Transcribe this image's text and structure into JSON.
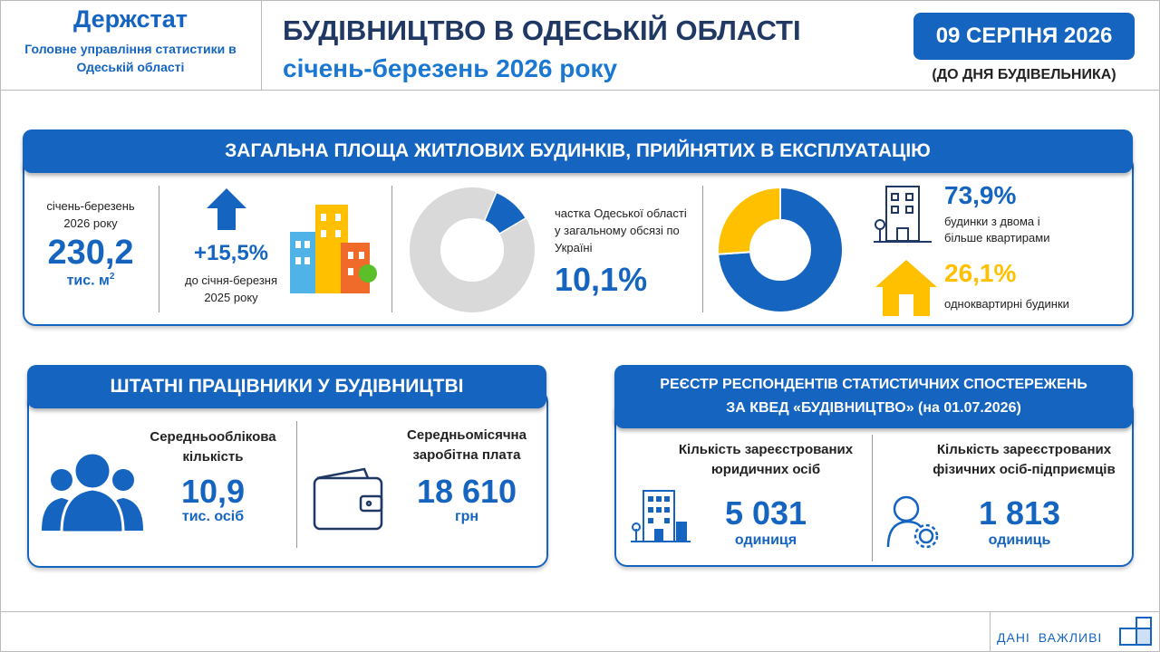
{
  "header": {
    "org": "Держстат",
    "org_sub": "Головне управління статистики в Одеській області",
    "title": "БУДІВНИЦТВО В ОДЕСЬКІЙ ОБЛАСТІ",
    "subtitle": "січень-березень 2026 року",
    "date": "09 СЕРПНЯ 2026",
    "date_note": "(ДО ДНЯ БУДІВЕЛЬНИКА)"
  },
  "housing": {
    "title": "ЗАГАЛЬНА ПЛОЩА ЖИТЛОВИХ БУДИНКІВ, ПРИЙНЯТИХ В ЕКСПЛУАТАЦІЮ",
    "period": "січень-березень 2026 року",
    "total": "230,2",
    "total_unit": "тис. м",
    "total_unit_sup": "2",
    "growth": "+15,5%",
    "growth_note": "до січня-березня 2025 року",
    "share_text": "частка Одеської області у загальному обсязі по Україні",
    "share": {
      "value": 10.1,
      "label": "10,1%"
    },
    "multi": {
      "value": 73.9,
      "label": "73,9%",
      "text": "будинки з двома і більше квартирами"
    },
    "single": {
      "value": 26.1,
      "label": "26,1%",
      "text": "одноквартирні будинки"
    }
  },
  "employees": {
    "title": "ШТАТНІ ПРАЦІВНИКИ У БУДІВНИЦТВІ",
    "count_label": "Середньооблікова кількість",
    "count": "10,9",
    "count_unit": "тис. осіб",
    "wage_label": "Середньомісячна заробітна плата",
    "wage": "18 610",
    "wage_unit": "грн"
  },
  "register": {
    "title_1": "РЕЄСТР РЕСПОНДЕНТІВ СТАТИСТИЧНИХ СПОСТЕРЕЖЕНЬ",
    "title_2": "ЗА КВЕД «БУДІВНИЦТВО» (на 01.07.2026)",
    "legal_label": "Кількість зареєстрованих юридичних осіб",
    "legal": "5 031",
    "legal_unit": "одиниця",
    "fop_label": "Кількість зареєстрованих фізичних осіб-підприємців",
    "fop": "1 813",
    "fop_unit": "одиниць"
  },
  "footer": {
    "text": "ДАНІ ВАЖЛИВІ"
  }
}
